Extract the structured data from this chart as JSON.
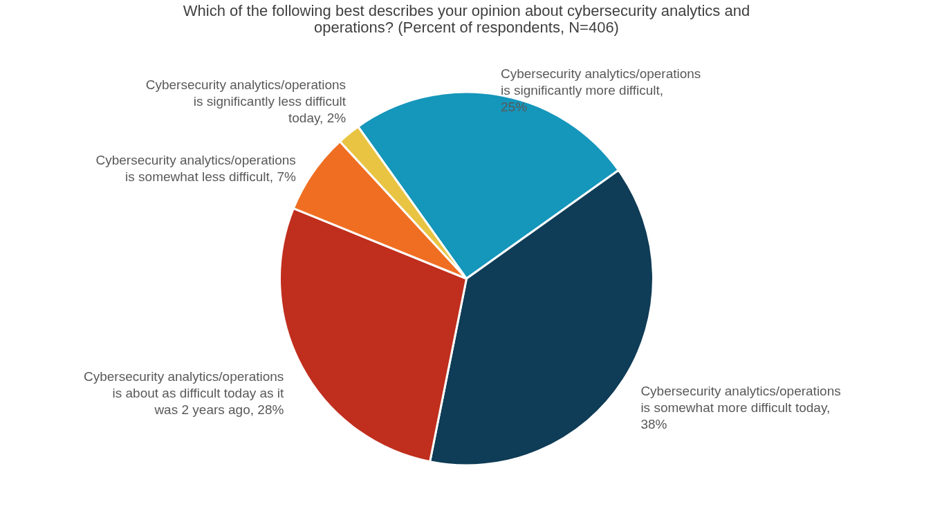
{
  "chart_data": {
    "type": "pie",
    "title": "Which of the following best describes your opinion about cybersecurity analytics and operations? (Percent of respondents, N=406)",
    "categories": [
      "Cybersecurity analytics/operations is significantly more difficult, 25%",
      "Cybersecurity analytics/operations is somewhat more difficult today, 38%",
      "Cybersecurity analytics/operations is about as difficult today as it was 2 years ago, 28%",
      "Cybersecurity analytics/operations is somewhat less difficult, 7%",
      "Cybersecurity analytics/operations is significantly less difficult today, 2%"
    ],
    "values": [
      25,
      38,
      28,
      7,
      2
    ],
    "colors": [
      "#1596bb",
      "#0f3c56",
      "#c02e1d",
      "#f06e22",
      "#e9c443"
    ]
  }
}
